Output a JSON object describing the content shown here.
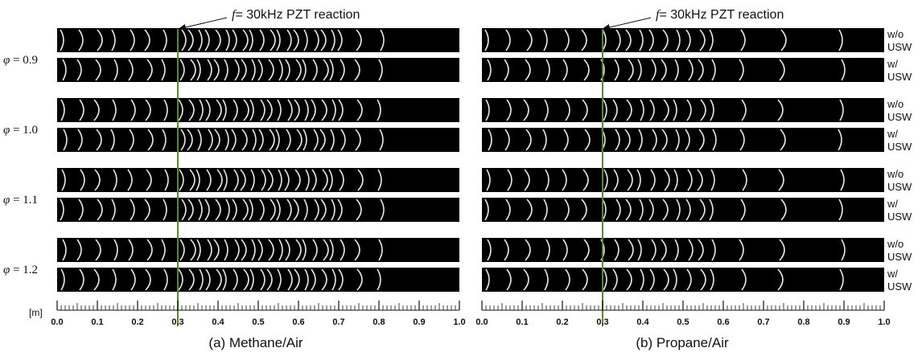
{
  "annotations": {
    "panel_a": {
      "symbol": "f",
      "text": "= 30kHz  PZT reaction"
    },
    "panel_b": {
      "symbol": "f",
      "text": "= 30kHz  PZT reaction"
    }
  },
  "equivalence_ratios": [
    {
      "symbol": "φ",
      "text": " = 0.9"
    },
    {
      "symbol": "φ",
      "text": " = 1.0"
    },
    {
      "symbol": "φ",
      "text": " = 1.1"
    },
    {
      "symbol": "φ",
      "text": " = 1.2"
    }
  ],
  "conditions": {
    "without": {
      "line1": "w/o",
      "line2": "USW"
    },
    "with": {
      "line1": "w/",
      "line2": "USW"
    }
  },
  "axis": {
    "unit": "[m]",
    "ticks": [
      "0.0",
      "0.1",
      "0.2",
      "0.3",
      "0.4",
      "0.5",
      "0.6",
      "0.7",
      "0.8",
      "0.9",
      "1.0"
    ],
    "pzt_position_m": 0.3
  },
  "captions": {
    "panel_a": "(a)  Methane/Air",
    "panel_b": "(b)  Propane/Air"
  },
  "colors": {
    "image_background": "#000000",
    "flame_front": "#e8e8e8",
    "pzt_line": "#5a8a2e",
    "text": "#111111"
  }
}
